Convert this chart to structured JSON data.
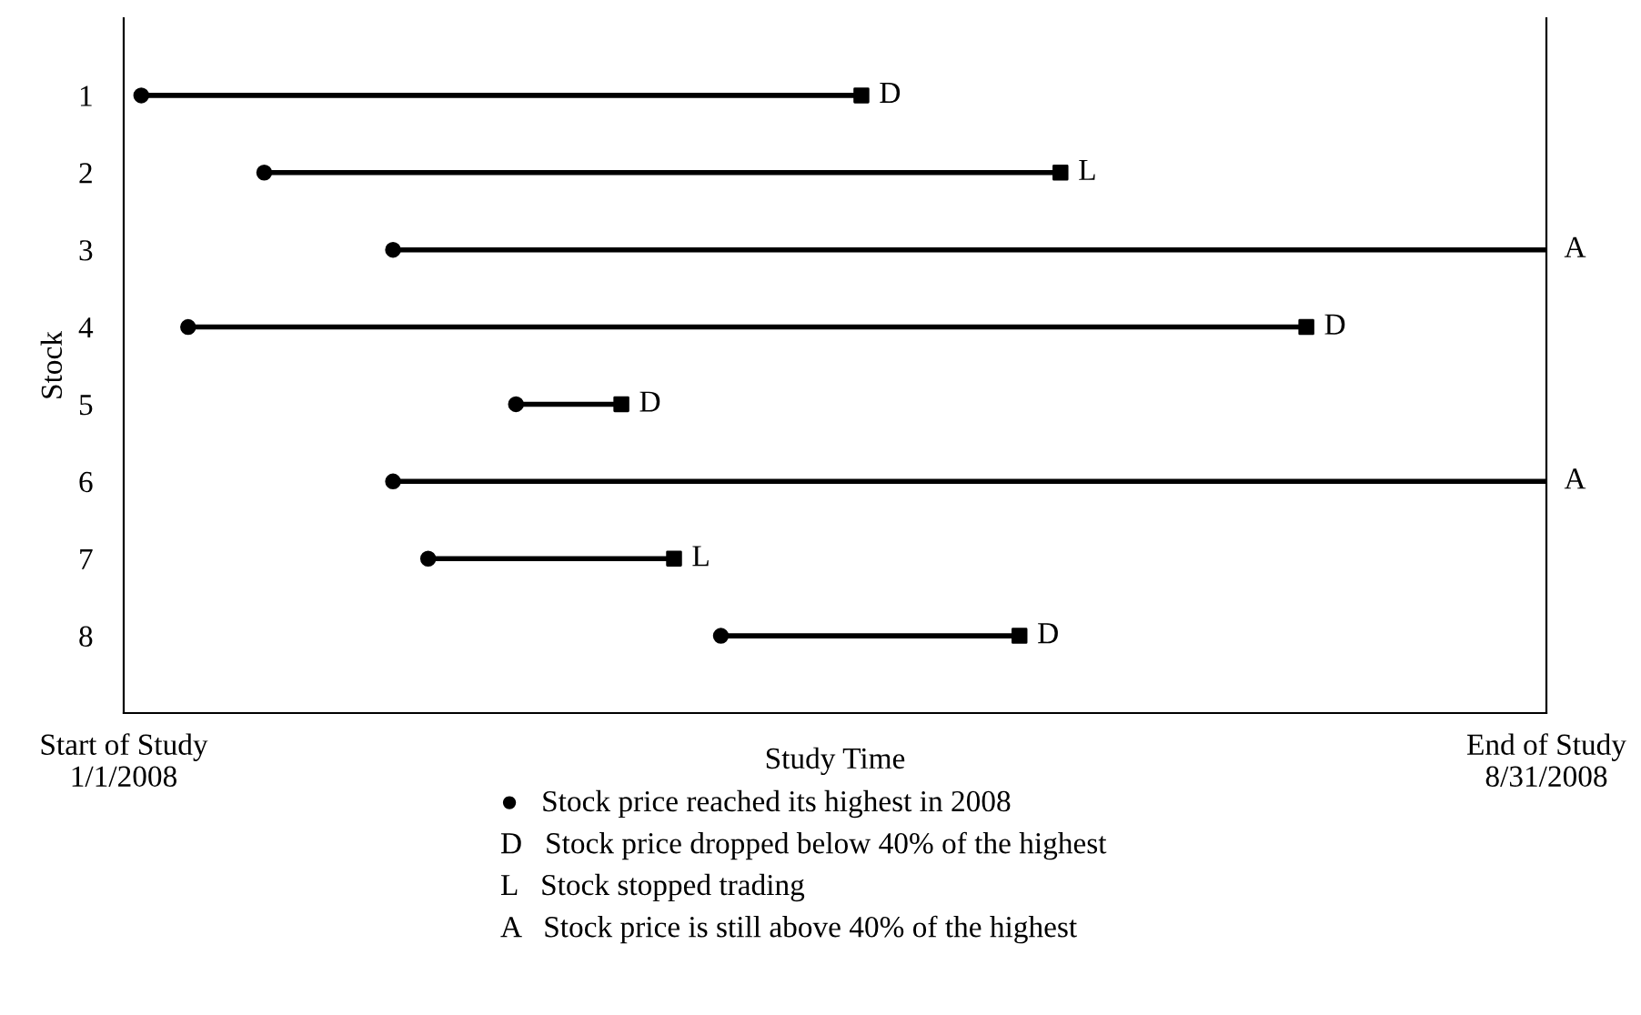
{
  "chart_data": {
    "type": "line",
    "xlabel": "Study Time",
    "ylabel": "Stock",
    "color": "#000000",
    "marker": "none",
    "series": [
      {
        "x": [
          "2008-01-04",
          "2008-05-06"
        ],
        "values": [
          1,
          1
        ]
      },
      {
        "x": [
          "2008-01-25",
          "2008-06-09"
        ],
        "values": [
          2,
          2
        ]
      },
      {
        "x": [
          "2008-02-16",
          "2008-08-31"
        ],
        "values": [
          3,
          3
        ]
      },
      {
        "x": [
          "2008-01-12",
          "2008-07-21"
        ],
        "values": [
          4,
          4
        ]
      },
      {
        "x": [
          "2008-03-08",
          "2008-03-26"
        ],
        "values": [
          5,
          5
        ]
      },
      {
        "x": [
          "2008-02-16",
          "2008-08-31"
        ],
        "values": [
          6,
          6
        ]
      },
      {
        "x": [
          "2008-02-22",
          "2008-04-04"
        ],
        "values": [
          7,
          7
        ]
      },
      {
        "x": [
          "2008-04-12",
          "2008-06-02"
        ],
        "values": [
          8,
          8
        ]
      },
      {
        "type": "scatter",
        "marker": "circle",
        "x": [
          "2008-01-04",
          "2008-01-25",
          "2008-02-16",
          "2008-01-12",
          "2008-03-08",
          "2008-02-16",
          "2008-02-22",
          "2008-04-12"
        ],
        "values": [
          1,
          2,
          3,
          4,
          5,
          6,
          7,
          8
        ]
      },
      {
        "type": "scatter",
        "marker": "square",
        "x": [
          "2008-05-06",
          "2008-06-09",
          "2008-07-21",
          "2008-03-26",
          "2008-04-04",
          "2008-06-02"
        ],
        "values": [
          1,
          2,
          4,
          5,
          7,
          8
        ]
      }
    ],
    "xlim": [
      "2008-01-01",
      "2008-08-31"
    ],
    "xticks": [
      {
        "value": "2008-01-01",
        "label": "Start of Study\n1/1/2008"
      },
      {
        "value": "2008-08-31",
        "label": "End of Study\n8/31/2008"
      }
    ],
    "ylim": [
      9,
      0
    ],
    "yticks": [
      1,
      2,
      3,
      4,
      5,
      6,
      7,
      8
    ],
    "annotations": [
      {
        "text": "D",
        "x": "2008-05-06",
        "y": 1
      },
      {
        "text": "L",
        "x": "2008-06-09",
        "y": 2
      },
      {
        "text": "A",
        "x": "2008-08-31",
        "y": 3
      },
      {
        "text": "D",
        "x": "2008-07-21",
        "y": 4
      },
      {
        "text": "D",
        "x": "2008-03-26",
        "y": 5
      },
      {
        "text": "A",
        "x": "2008-08-31",
        "y": 6
      },
      {
        "text": "L",
        "x": "2008-04-04",
        "y": 7
      },
      {
        "text": "D",
        "x": "2008-06-02",
        "y": 8
      },
      "●   Stock price reached its highest in 2008",
      "D   Stock price dropped below 40% of the highest",
      "L   Stock stopped trading",
      "A   Stock price is still above 40% of the highest"
    ]
  }
}
